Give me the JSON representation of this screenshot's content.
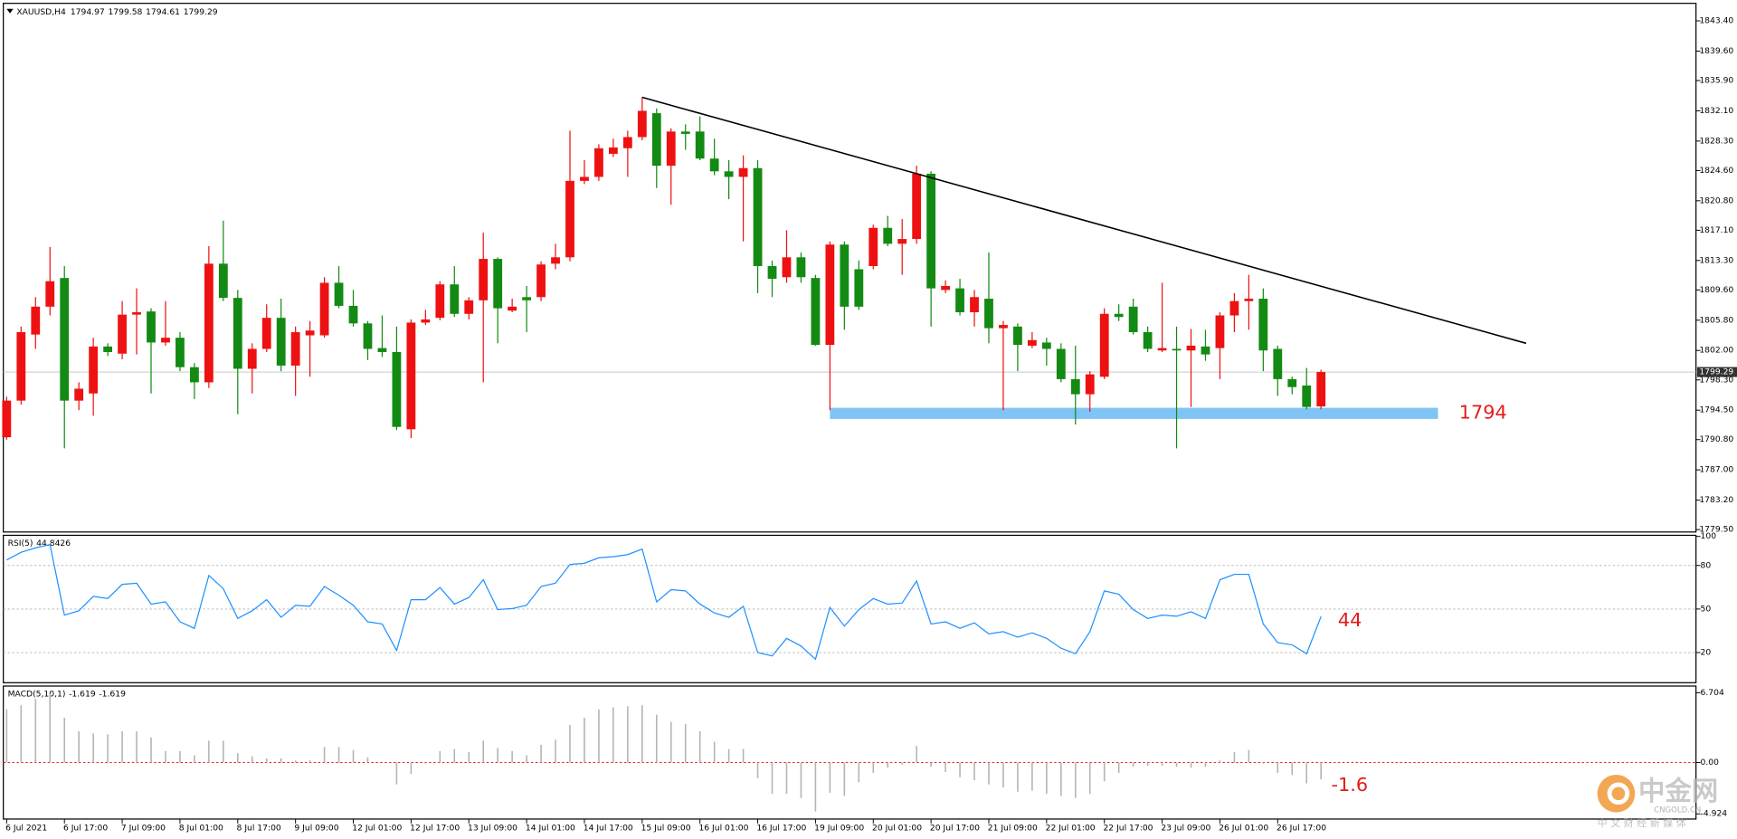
{
  "chart_data": [
    {
      "type": "candlestick",
      "title": "XAUUSD,H4",
      "categories": [
        "6 Jul 2021",
        null,
        null,
        null,
        "6 Jul 17:00",
        null,
        null,
        null,
        "7 Jul 09:00",
        null,
        null,
        null,
        "8 Jul 01:00",
        null,
        null,
        null,
        "8 Jul 17:00",
        null,
        null,
        null,
        "9 Jul 09:00",
        null,
        null,
        null,
        "12 Jul 01:00",
        null,
        null,
        null,
        "12 Jul 17:00",
        null,
        null,
        null,
        "13 Jul 09:00",
        null,
        null,
        null,
        "14 Jul 01:00",
        null,
        null,
        null,
        "14 Jul 17:00",
        null,
        null,
        null,
        "15 Jul 09:00",
        null,
        null,
        null,
        "16 Jul 01:00",
        null,
        null,
        null,
        "16 Jul 17:00",
        null,
        null,
        null,
        "19 Jul 09:00",
        null,
        null,
        null,
        "20 Jul 01:00",
        null,
        null,
        null,
        "20 Jul 17:00",
        null,
        null,
        null,
        "21 Jul 09:00",
        null,
        null,
        null,
        "22 Jul 01:00",
        null,
        null,
        null,
        "22 Jul 17:00",
        null,
        null,
        null,
        "23 Jul 09:00",
        null,
        null,
        null,
        "26 Jul 01:00",
        null,
        null,
        null,
        "26 Jul 17:00",
        null,
        null,
        null
      ],
      "open": [
        1791.1,
        1795.7,
        1804.0,
        1807.5,
        1811.1,
        1795.7,
        1796.6,
        1802.5,
        1801.6,
        1806.5,
        1806.9,
        1803.0,
        1803.6,
        1799.9,
        1798.0,
        1812.9,
        1808.6,
        1799.7,
        1802.2,
        1806.1,
        1800.1,
        1803.9,
        1803.9,
        1810.5,
        1807.6,
        1805.4,
        1802.3,
        1801.8,
        1792.1,
        1805.5,
        1806.1,
        1810.3,
        1806.6,
        1808.3,
        1813.5,
        1807.0,
        1808.7,
        1808.7,
        1812.9,
        1813.7,
        1823.3,
        1823.8,
        1826.7,
        1827.4,
        1828.8,
        1831.8,
        1825.2,
        1829.5,
        1829.5,
        1826.1,
        1824.5,
        1823.8,
        1824.9,
        1812.6,
        1811.2,
        1813.7,
        1811.1,
        1802.7,
        1815.3,
        1812.2,
        1812.6,
        1817.4,
        1815.4,
        1816.0,
        1824.2,
        1809.6,
        1809.8,
        1806.8,
        1808.5,
        1804.8,
        1805.0,
        1802.6,
        1803.0,
        1802.2,
        1798.4,
        1796.5,
        1798.7,
        1806.6,
        1807.5,
        1804.3,
        1802.0,
        1802.2,
        1802.0,
        1802.5,
        1802.3,
        1806.4,
        1808.2,
        1808.5,
        1802.2,
        1798.4,
        1797.6,
        1794.97
      ],
      "high": [
        1796.2,
        1805.0,
        1808.7,
        1815.0,
        1812.6,
        1798.0,
        1803.6,
        1802.9,
        1808.2,
        1809.8,
        1807.3,
        1808.2,
        1804.3,
        1800.4,
        1815.1,
        1818.3,
        1809.6,
        1802.9,
        1807.8,
        1808.5,
        1805.0,
        1805.7,
        1811.2,
        1812.6,
        1809.6,
        1805.7,
        1806.4,
        1805.0,
        1805.9,
        1807.1,
        1810.7,
        1812.6,
        1808.7,
        1816.8,
        1813.7,
        1808.5,
        1810.1,
        1813.2,
        1815.4,
        1829.6,
        1825.9,
        1827.9,
        1828.6,
        1829.6,
        1833.8,
        1832.4,
        1829.9,
        1830.4,
        1831.4,
        1828.6,
        1825.9,
        1826.5,
        1825.9,
        1813.3,
        1817.1,
        1814.3,
        1811.5,
        1815.7,
        1815.7,
        1813.3,
        1817.8,
        1818.9,
        1818.5,
        1825.2,
        1824.5,
        1810.8,
        1811.0,
        1809.6,
        1814.3,
        1805.7,
        1805.4,
        1804.3,
        1803.6,
        1802.9,
        1802.6,
        1799.4,
        1807.3,
        1807.8,
        1808.5,
        1805.0,
        1810.5,
        1805.0,
        1804.7,
        1804.6,
        1806.8,
        1809.2,
        1811.5,
        1809.8,
        1802.6,
        1798.7,
        1799.8,
        1799.58
      ],
      "low": [
        1790.8,
        1795.2,
        1802.2,
        1806.4,
        1789.7,
        1794.5,
        1793.8,
        1801.3,
        1800.9,
        1801.5,
        1796.6,
        1802.6,
        1799.4,
        1795.9,
        1797.3,
        1808.2,
        1794.0,
        1796.6,
        1801.8,
        1799.4,
        1796.3,
        1798.7,
        1803.6,
        1807.3,
        1805.0,
        1800.8,
        1801.2,
        1792.0,
        1791.0,
        1805.2,
        1805.8,
        1806.2,
        1805.9,
        1798.0,
        1802.9,
        1806.8,
        1804.3,
        1808.2,
        1812.2,
        1813.2,
        1822.9,
        1823.3,
        1826.3,
        1823.8,
        1828.4,
        1822.4,
        1820.3,
        1827.2,
        1825.9,
        1824.0,
        1821.0,
        1815.7,
        1809.2,
        1808.7,
        1810.5,
        1810.5,
        1802.6,
        1794.5,
        1804.6,
        1807.1,
        1812.2,
        1815.1,
        1811.5,
        1815.4,
        1805.0,
        1809.2,
        1806.4,
        1805.0,
        1802.9,
        1794.5,
        1799.4,
        1802.3,
        1800.1,
        1798.0,
        1792.7,
        1794.3,
        1798.4,
        1805.7,
        1804.0,
        1801.8,
        1801.8,
        1789.7,
        1794.9,
        1800.7,
        1798.4,
        1804.3,
        1804.6,
        1799.4,
        1796.3,
        1796.5,
        1794.6,
        1794.61
      ],
      "close": [
        1795.7,
        1804.3,
        1807.5,
        1810.7,
        1795.7,
        1797.2,
        1802.5,
        1801.8,
        1806.5,
        1806.8,
        1803.0,
        1803.6,
        1799.9,
        1798.0,
        1812.9,
        1808.6,
        1799.7,
        1802.2,
        1806.1,
        1800.1,
        1804.3,
        1804.5,
        1810.5,
        1807.6,
        1805.4,
        1802.2,
        1801.8,
        1792.4,
        1805.5,
        1805.9,
        1810.3,
        1806.6,
        1808.3,
        1813.5,
        1807.3,
        1807.5,
        1808.3,
        1812.8,
        1813.7,
        1823.3,
        1823.8,
        1827.4,
        1827.5,
        1828.8,
        1832.1,
        1825.2,
        1829.5,
        1829.2,
        1826.1,
        1824.5,
        1823.8,
        1824.9,
        1812.6,
        1811.0,
        1813.7,
        1811.2,
        1802.7,
        1815.3,
        1807.5,
        1807.5,
        1817.4,
        1815.4,
        1816.0,
        1824.2,
        1809.8,
        1810.1,
        1806.8,
        1808.7,
        1804.8,
        1805.2,
        1802.7,
        1803.3,
        1802.2,
        1798.4,
        1796.5,
        1799.0,
        1806.6,
        1806.2,
        1804.3,
        1802.2,
        1802.3,
        1802.0,
        1802.6,
        1801.5,
        1806.4,
        1808.2,
        1808.5,
        1802.0,
        1798.4,
        1797.4,
        1794.9,
        1799.29
      ],
      "up_color": "#ee1111",
      "down_color": "#138a13",
      "ylim": [
        1779.2,
        1845.6
      ],
      "yticks": [
        {
          "value": 1843.4,
          "label": "1843.40"
        },
        {
          "value": 1839.6,
          "label": "1839.60"
        },
        {
          "value": 1835.9,
          "label": "1835.90"
        },
        {
          "value": 1832.1,
          "label": "1832.10"
        },
        {
          "value": 1828.3,
          "label": "1828.30"
        },
        {
          "value": 1824.6,
          "label": "1824.60"
        },
        {
          "value": 1820.8,
          "label": "1820.80"
        },
        {
          "value": 1817.1,
          "label": "1817.10"
        },
        {
          "value": 1813.3,
          "label": "1813.30"
        },
        {
          "value": 1809.6,
          "label": "1809.60"
        },
        {
          "value": 1805.8,
          "label": "1805.80"
        },
        {
          "value": 1802.0,
          "label": "1802.00"
        },
        {
          "value": 1798.3,
          "label": "1798.30"
        },
        {
          "value": 1794.5,
          "label": "1794.50"
        },
        {
          "value": 1790.8,
          "label": "1790.80"
        },
        {
          "value": 1787.0,
          "label": "1787.00"
        },
        {
          "value": 1783.2,
          "label": "1783.20"
        },
        {
          "value": 1779.5,
          "label": "1779.50"
        }
      ],
      "trendline": {
        "x": [
          44,
          105.2
        ],
        "y": [
          1833.8,
          1802.9
        ],
        "color": "#000000"
      },
      "support": {
        "label": "1794",
        "x": [
          57,
          99.1
        ],
        "y": [
          1793.4,
          1794.8
        ],
        "color": "#7fc4f5"
      }
    },
    {
      "type": "line",
      "title": "RSI(5)",
      "values": [
        83.8,
        89.1,
        92.1,
        94.4,
        45.8,
        48.8,
        58.7,
        57.2,
        67.0,
        67.8,
        53.4,
        54.9,
        41.2,
        36.7,
        73.1,
        64.0,
        43.5,
        48.8,
        56.4,
        44.3,
        52.6,
        51.9,
        65.5,
        59.5,
        52.6,
        41.2,
        39.7,
        21.5,
        56.4,
        56.4,
        64.8,
        53.4,
        57.9,
        70.1,
        49.6,
        50.3,
        52.6,
        65.5,
        67.8,
        80.7,
        81.5,
        85.3,
        86.0,
        87.5,
        91.3,
        54.9,
        63.3,
        62.5,
        53.4,
        47.3,
        44.3,
        51.9,
        20.0,
        17.7,
        29.8,
        24.5,
        15.4,
        51.1,
        38.2,
        49.6,
        57.2,
        53.4,
        54.1,
        69.3,
        39.7,
        41.2,
        36.7,
        40.5,
        32.9,
        34.4,
        30.6,
        33.6,
        29.8,
        23.0,
        19.2,
        34.4,
        62.5,
        60.2,
        49.6,
        43.5,
        45.8,
        45.0,
        48.1,
        43.5,
        70.1,
        73.9,
        73.9,
        39.7,
        26.8,
        25.3,
        19.2,
        44.8426
      ],
      "color": "#1e90ff",
      "ylim": [
        0,
        100
      ],
      "yticks": [
        100,
        80,
        50,
        20
      ],
      "annotation": "44"
    },
    {
      "type": "bar",
      "title": "MACD(5,10,1)",
      "values": [
        5.1,
        5.5,
        6.1,
        6.6,
        4.3,
        3.0,
        2.8,
        2.7,
        3.0,
        3.0,
        2.4,
        1.1,
        1.1,
        0.7,
        2.1,
        2.1,
        0.9,
        0.6,
        0.4,
        0.4,
        0.2,
        0.2,
        1.5,
        1.5,
        1.2,
        0.5,
        0,
        -2.1,
        -1.1,
        -0.1,
        1.1,
        1.3,
        1.0,
        2.1,
        1.4,
        1.1,
        0.7,
        1.7,
        2.2,
        3.6,
        4.3,
        5.1,
        5.3,
        5.4,
        5.5,
        4.6,
        3.9,
        3.7,
        3.0,
        2.0,
        1.3,
        1.3,
        -1.5,
        -3.0,
        -3.0,
        -3.4,
        -4.7,
        -2.9,
        -3.2,
        -1.9,
        -1.0,
        -0.5,
        -0.2,
        1.6,
        -0.4,
        -0.9,
        -1.4,
        -1.7,
        -2.1,
        -2.4,
        -2.8,
        -2.7,
        -3.0,
        -3.2,
        -3.4,
        -3.0,
        -1.8,
        -1.0,
        -0.4,
        -0.3,
        -0.3,
        -0.4,
        -0.5,
        -0.4,
        0.2,
        1.0,
        1.2,
        -0.1,
        -1.0,
        -1.2,
        -2.0,
        -1.619
      ],
      "color": "#b4b4b4",
      "ylim": [
        -4.924,
        6.704
      ],
      "yticks": [
        6.704,
        {
          "value": 0,
          "label": "0.00"
        },
        -4.924
      ],
      "annotation": "-1.6"
    }
  ],
  "watermark": {
    "logo": "中金网",
    "site": "CNGOLD.CN",
    "tagline": "中 文 财 经 新 媒 体"
  }
}
